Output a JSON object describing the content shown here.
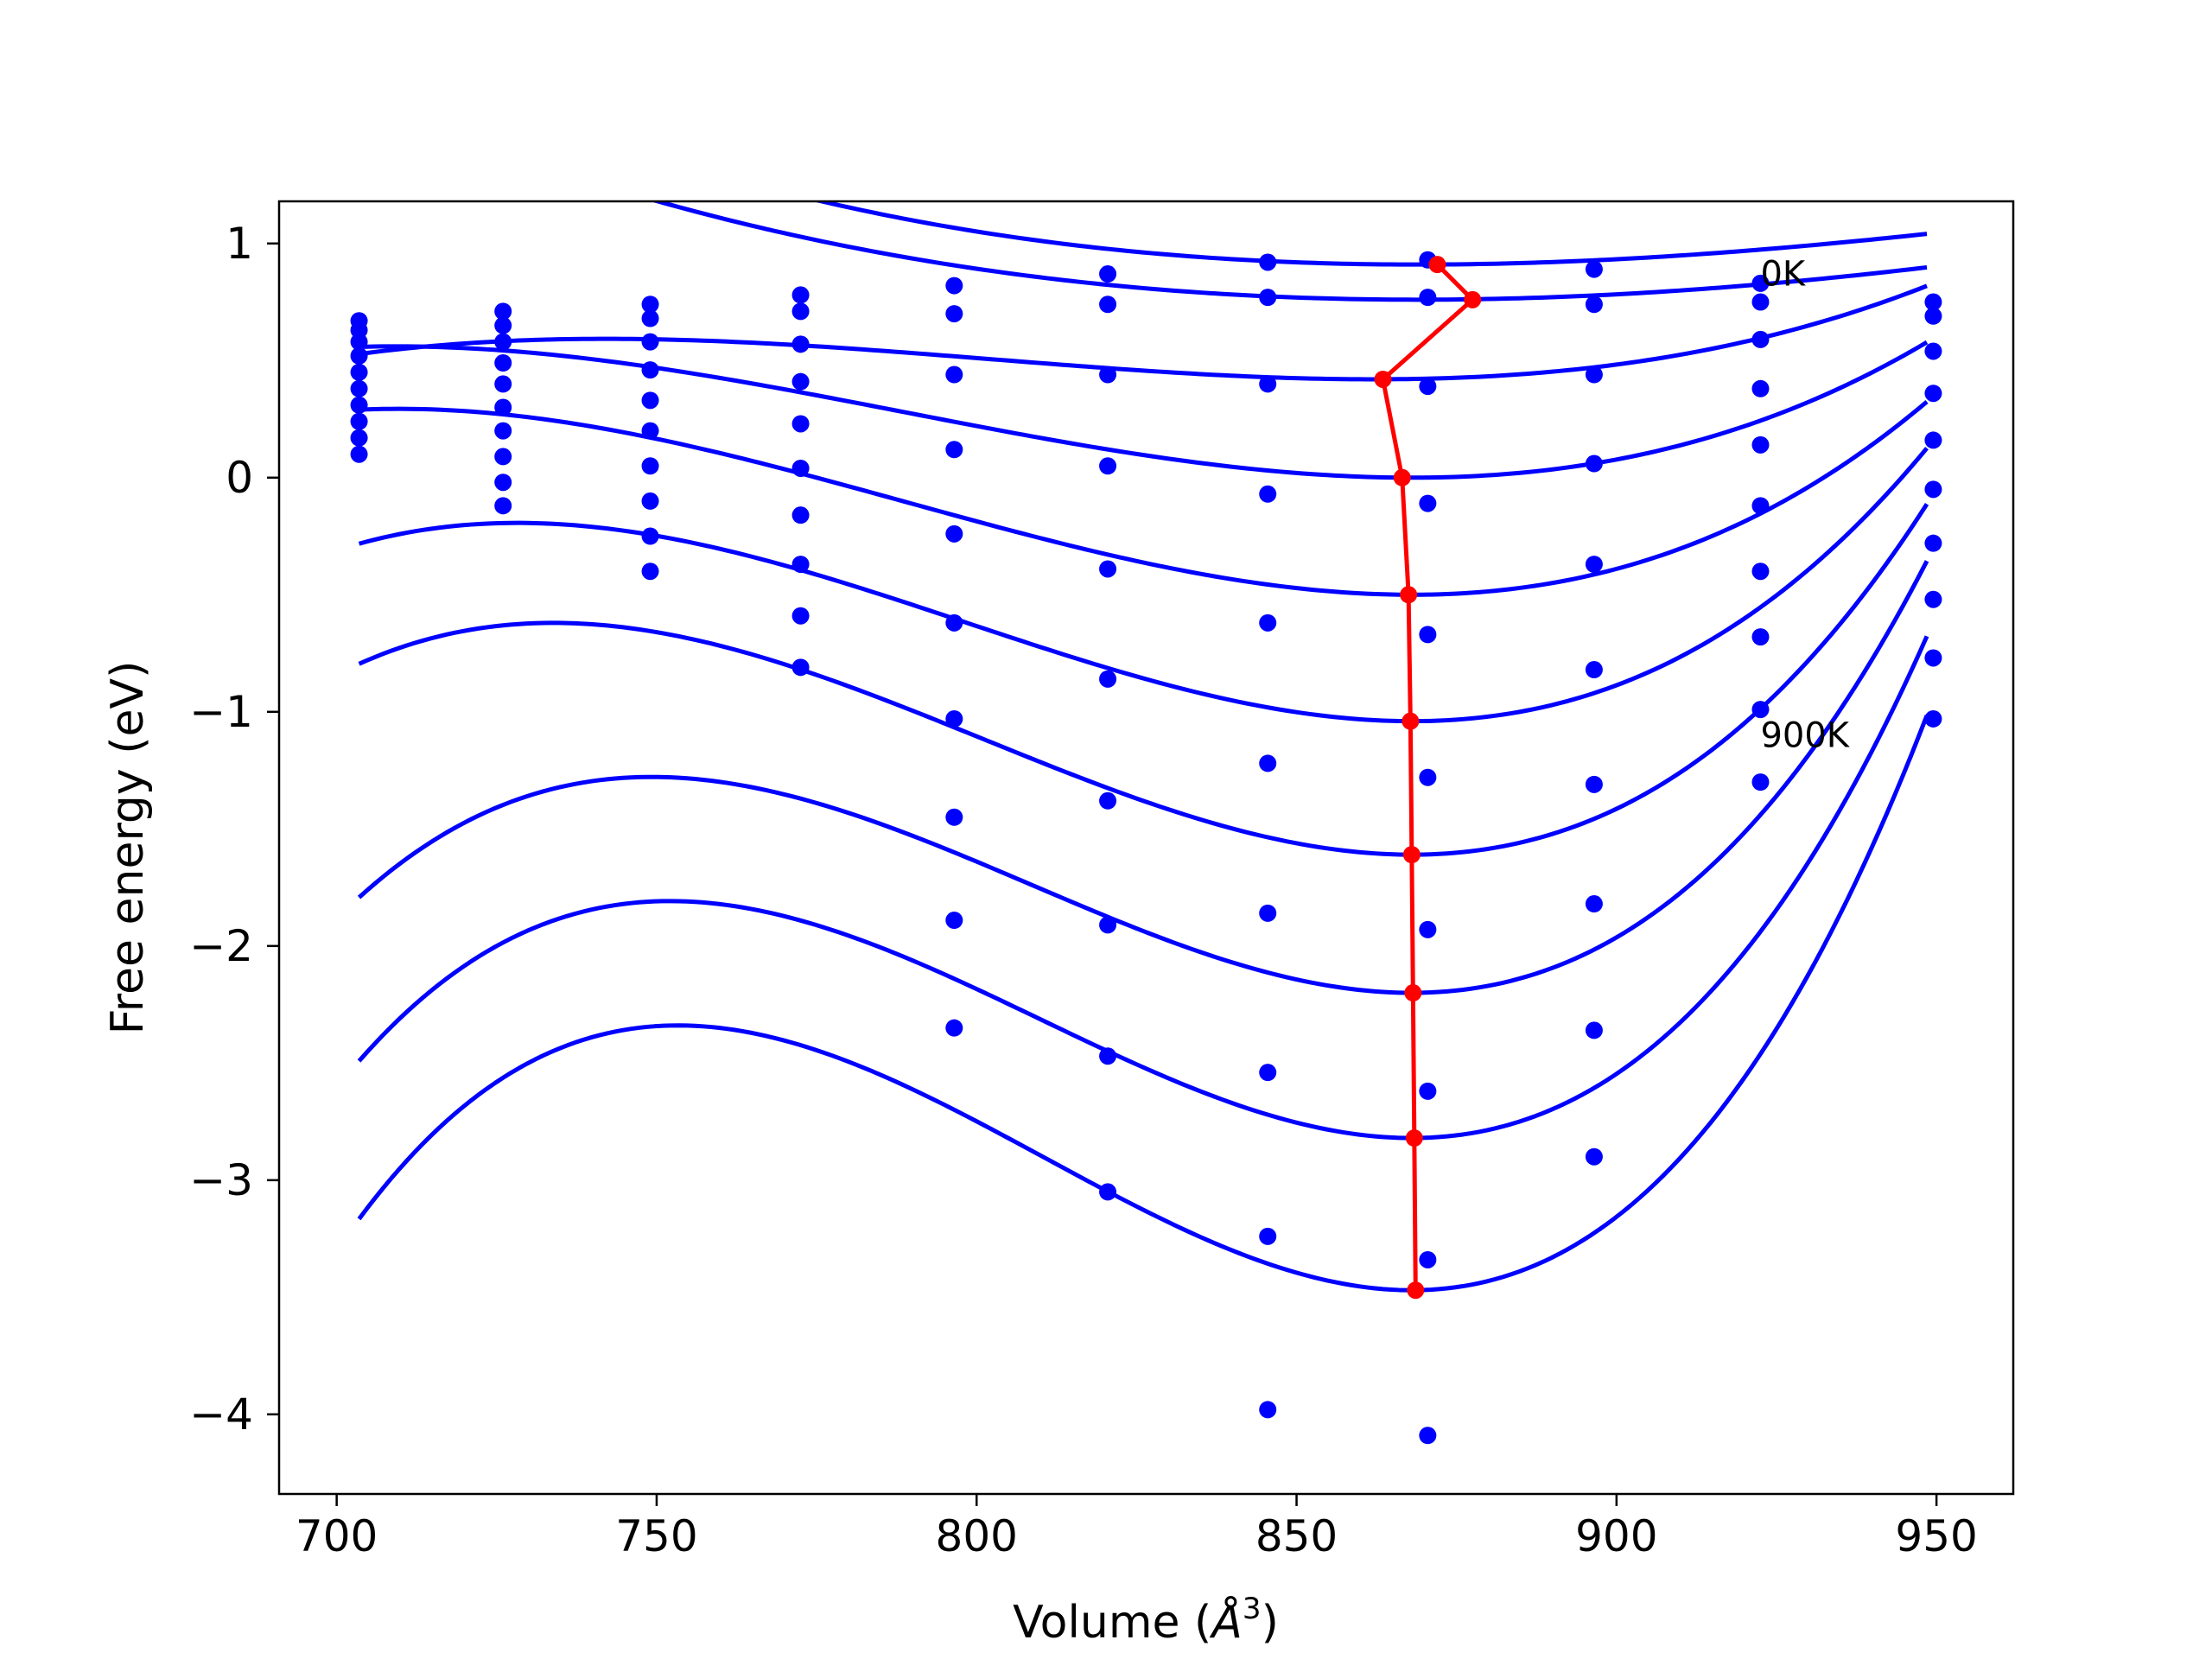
{
  "chart_data": {
    "type": "line",
    "xlabel": "Volume (",
    "xlabel_symbol": "Å",
    "xlabel_exponent": "3",
    "xlabel_close": ")",
    "ylabel": "Free energy (eV)",
    "xlim": [
      691,
      962
    ],
    "ylim": [
      -4.34,
      1.18
    ],
    "x_ticks": [
      700,
      750,
      800,
      850,
      900,
      950
    ],
    "y_ticks": [
      1,
      0,
      -1,
      -2,
      -3,
      -4
    ],
    "x_tick_labels": [
      "700",
      "750",
      "800",
      "850",
      "900",
      "950"
    ],
    "y_tick_labels": [
      "1",
      "0",
      "−1",
      "−2",
      "−3",
      "−4"
    ],
    "grid": false,
    "annotations": [
      {
        "text": "0K",
        "x": 922.5,
        "y": 0.82
      },
      {
        "text": "900K",
        "x": 922.5,
        "y": -1.15
      }
    ],
    "fit_colour": "#0000ff",
    "minimum_line_colour": "#ff0000",
    "volumes": [
      703.5,
      726.0,
      749.0,
      772.5,
      796.5,
      820.5,
      845.5,
      870.5,
      896.5,
      922.5,
      949.5
    ],
    "fit_curves": [
      {
        "v0": 869,
        "e0": 0.91,
        "curvature": 2.55e-05,
        "asymmetry": -6e-08
      },
      {
        "v0": 869,
        "e0": 0.76,
        "curvature": 2.5e-05,
        "asymmetry": -4e-08
      },
      {
        "v0": 862,
        "e0": 0.42,
        "curvature": 3.6e-05,
        "asymmetry": 2e-07
      },
      {
        "v0": 868,
        "e0": 0.0,
        "curvature": 6.67e-05,
        "asymmetry": 2.8e-07
      },
      {
        "v0": 868,
        "e0": -0.5,
        "curvature": 9.5e-05,
        "asymmetry": 4e-07
      },
      {
        "v0": 868,
        "e0": -1.04,
        "curvature": 0.00013,
        "asymmetry": 6.2e-07
      },
      {
        "v0": 868,
        "e0": -1.61,
        "curvature": 0.000165,
        "asymmetry": 8.2e-07
      },
      {
        "v0": 868,
        "e0": -2.2,
        "curvature": 0.000196,
        "asymmetry": 1.1e-06
      },
      {
        "v0": 868,
        "e0": -2.82,
        "curvature": 0.000226,
        "asymmetry": 1.3e-06
      },
      {
        "v0": 868,
        "e0": -3.47,
        "curvature": 0.000258,
        "asymmetry": 1.5e-06
      }
    ],
    "points_by_volume": [
      {
        "x": 703.5,
        "y": [
          0.67,
          0.63,
          0.58,
          0.52,
          0.45,
          0.38,
          0.31,
          0.24,
          0.17,
          0.1
        ]
      },
      {
        "x": 726.0,
        "y": [
          0.71,
          0.65,
          0.58,
          0.49,
          0.4,
          0.3,
          0.2,
          0.09,
          -0.02,
          -0.12
        ]
      },
      {
        "x": 749.0,
        "y": [
          0.74,
          0.68,
          0.58,
          0.46,
          0.33,
          0.2,
          0.05,
          -0.1,
          -0.25,
          -0.4
        ]
      },
      {
        "x": 772.5,
        "y": [
          0.78,
          0.71,
          0.57,
          0.41,
          0.23,
          0.04,
          -0.16,
          -0.37,
          -0.59,
          -0.81
        ]
      },
      {
        "x": 796.5,
        "y": [
          0.82,
          0.7,
          0.44,
          0.12,
          -0.24,
          -0.62,
          -1.03,
          -1.45,
          -1.89,
          -2.35
        ]
      },
      {
        "x": 820.5,
        "y": [
          0.87,
          0.74,
          0.44,
          0.05,
          -0.39,
          -0.86,
          -1.38,
          -1.91,
          -2.47,
          -3.05
        ]
      },
      {
        "x": 845.5,
        "y": [
          0.92,
          0.77,
          0.4,
          -0.07,
          -0.62,
          -1.22,
          -1.86,
          -2.54,
          -3.24,
          -3.98
        ]
      },
      {
        "x": 870.5,
        "y": [
          0.93,
          0.77,
          0.39,
          -0.11,
          -0.67,
          -1.28,
          -1.93,
          -2.62,
          -3.34,
          -4.09
        ]
      },
      {
        "x": 896.5,
        "y": [
          0.89,
          0.74,
          0.44,
          0.06,
          -0.37,
          -0.82,
          -1.31,
          -1.82,
          -2.36,
          -2.9
        ]
      },
      {
        "x": 922.5,
        "y": [
          0.83,
          0.75,
          0.59,
          0.38,
          0.14,
          -0.12,
          -0.4,
          -0.68,
          -0.99,
          -1.3
        ]
      },
      {
        "x": 949.5,
        "y": [
          0.75,
          0.69,
          0.54,
          0.36,
          0.16,
          -0.05,
          -0.28,
          -0.52,
          -0.77,
          -1.03
        ]
      }
    ],
    "minimum_line": {
      "name": "",
      "x": [
        872,
        877.5,
        863.5,
        866.5,
        867.5,
        867.8,
        868.0,
        868.2,
        868.4,
        868.6
      ],
      "y": [
        0.91,
        0.76,
        0.42,
        0.0,
        -0.5,
        -1.04,
        -1.61,
        -2.2,
        -2.82,
        -3.47
      ]
    }
  }
}
